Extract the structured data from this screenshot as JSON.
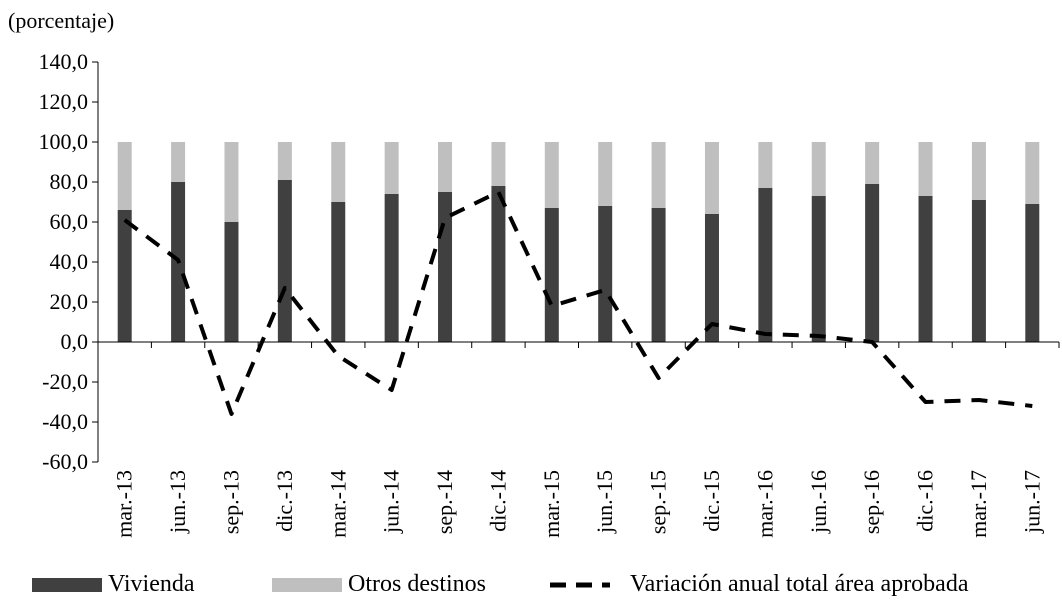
{
  "chart_data": {
    "type": "bar",
    "unit_label": "(porcentaje)",
    "categories": [
      "mar.-13",
      "jun.-13",
      "sep.-13",
      "dic.-13",
      "mar.-14",
      "jun.-14",
      "sep.-14",
      "dic.-14",
      "mar.-15",
      "jun.-15",
      "sep.-15",
      "dic.-15",
      "mar.-16",
      "jun.-16",
      "sep.-16",
      "dic.-16",
      "mar.-17",
      "jun.-17"
    ],
    "ylim": [
      -60,
      140
    ],
    "yticks": [
      "140,0",
      "120,0",
      "100,0",
      "80,0",
      "60,0",
      "40,0",
      "20,0",
      "0,0",
      "-20,0",
      "-40,0",
      "-60,0"
    ],
    "ytick_values": [
      140,
      120,
      100,
      80,
      60,
      40,
      20,
      0,
      -20,
      -40,
      -60
    ],
    "series": [
      {
        "name": "Vivienda",
        "kind": "stacked-bar",
        "color": "#404040",
        "values": [
          66,
          80,
          60,
          81,
          70,
          74,
          75,
          78,
          67,
          68,
          67,
          64,
          77,
          73,
          79,
          73,
          71,
          69
        ]
      },
      {
        "name": "Otros destinos",
        "kind": "stacked-bar",
        "color": "#bfbfbf",
        "values": [
          34,
          20,
          40,
          19,
          30,
          26,
          25,
          22,
          33,
          32,
          33,
          36,
          23,
          27,
          21,
          27,
          29,
          31
        ]
      },
      {
        "name": "Variación anual total área aprobada",
        "kind": "dashed-line",
        "color": "#000000",
        "values": [
          61,
          41,
          -36,
          27,
          -7,
          -24,
          62,
          75,
          18,
          26,
          -18,
          9,
          4,
          3,
          0,
          -30,
          -29,
          -32
        ]
      }
    ],
    "legend": "bottom",
    "grid": false
  }
}
